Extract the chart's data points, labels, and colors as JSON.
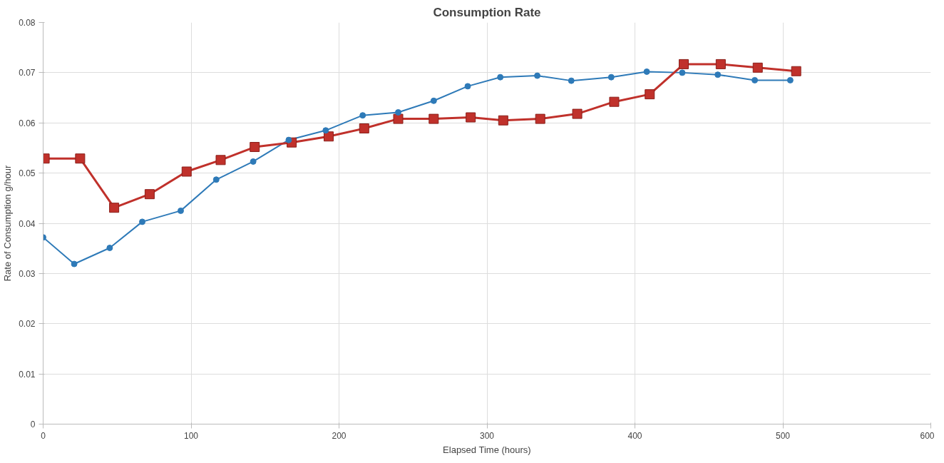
{
  "chart_data": {
    "type": "line",
    "title": "Consumption Rate",
    "xlabel": "Elapsed Time (hours)",
    "ylabel": "Rate of Consumption g/hour",
    "xlim": [
      0,
      600
    ],
    "xticks": [
      0,
      100,
      200,
      300,
      400,
      500,
      600
    ],
    "ylim": [
      0,
      0.08
    ],
    "yticks": [
      0,
      0.01,
      0.02,
      0.03,
      0.04,
      0.05,
      0.06,
      0.07,
      0.08
    ],
    "grid": true,
    "line_style": "solid",
    "series": [
      {
        "color": "#2e7ab8",
        "marker": "circle",
        "x": [
          0,
          21,
          45,
          67,
          93,
          117,
          142,
          166,
          191,
          216,
          240,
          264,
          287,
          309,
          334,
          357,
          384,
          408,
          432,
          456,
          481,
          505
        ],
        "values": [
          0.0372,
          0.0319,
          0.0351,
          0.0403,
          0.0425,
          0.0487,
          0.0523,
          0.0566,
          0.0585,
          0.0615,
          0.0621,
          0.0644,
          0.0673,
          0.0691,
          0.0694,
          0.0684,
          0.0691,
          0.0702,
          0.07,
          0.0696,
          0.0685,
          0.0685
        ]
      },
      {
        "color": "#c0312b",
        "marker": "square",
        "x": [
          1,
          25,
          48,
          72,
          97,
          120,
          143,
          168,
          193,
          217,
          240,
          264,
          289,
          311,
          336,
          361,
          386,
          410,
          433,
          458,
          483,
          509
        ],
        "values": [
          0.0529,
          0.0529,
          0.0431,
          0.0458,
          0.0503,
          0.0526,
          0.0552,
          0.0561,
          0.0573,
          0.0589,
          0.0608,
          0.0608,
          0.0611,
          0.0605,
          0.0608,
          0.0618,
          0.0642,
          0.0657,
          0.0717,
          0.0717,
          0.071,
          0.0703
        ]
      }
    ]
  }
}
